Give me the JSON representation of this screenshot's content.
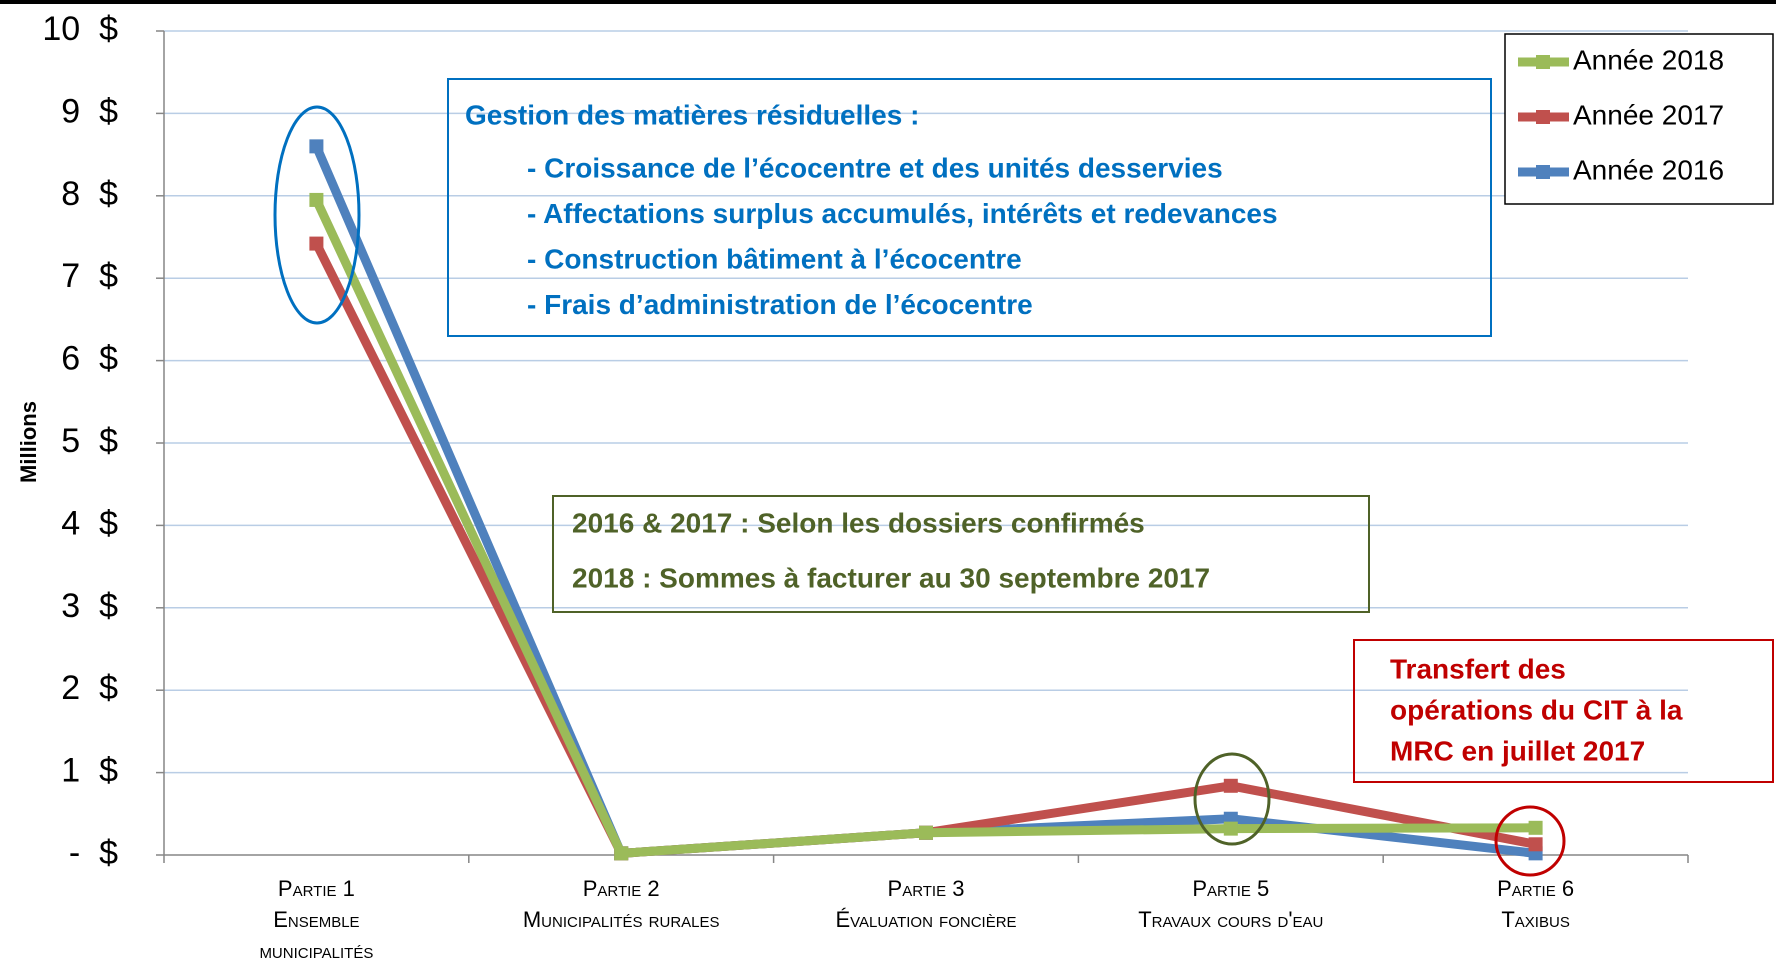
{
  "chart_data": {
    "type": "line",
    "y_label": "Millions",
    "categories": [
      [
        "Partie 1",
        "Ensemble",
        "municipalités"
      ],
      [
        "Partie 2",
        "Municipalités rurales"
      ],
      [
        "Partie 3",
        "Évaluation foncière"
      ],
      [
        "Partie 5",
        "Travaux cours d'eau"
      ],
      [
        "Partie 6",
        "Taxibus"
      ]
    ],
    "series": [
      {
        "name": "Année 2018",
        "color": "#9bbb59",
        "values": [
          7.95,
          0.02,
          0.27,
          0.32,
          0.33
        ]
      },
      {
        "name": "Année 2017",
        "color": "#c0504d",
        "values": [
          7.42,
          0.02,
          0.27,
          0.84,
          0.13
        ]
      },
      {
        "name": "Année 2016",
        "color": "#4f81bd",
        "values": [
          8.6,
          0.02,
          0.27,
          0.44,
          0.02
        ]
      }
    ],
    "ylim": [
      0,
      10
    ],
    "yticks": [
      {
        "value": 0,
        "label": "-  $"
      },
      {
        "value": 1,
        "label": "1  $"
      },
      {
        "value": 2,
        "label": "2  $"
      },
      {
        "value": 3,
        "label": "3  $"
      },
      {
        "value": 4,
        "label": "4  $"
      },
      {
        "value": 5,
        "label": "5  $"
      },
      {
        "value": 6,
        "label": "6  $"
      },
      {
        "value": 7,
        "label": "7  $"
      },
      {
        "value": 8,
        "label": "8  $"
      },
      {
        "value": 9,
        "label": "9  $"
      },
      {
        "value": 10,
        "label": "10  $"
      }
    ],
    "grid": true,
    "legend_position": "upper right",
    "annotations": [
      {
        "title": "Gestion des matières résiduelles :",
        "items": [
          "- Croissance de l’écocentre et des unités desservies",
          "- Affectations surplus accumulés, intérêts et redevances",
          "- Construction bâtiment à l’écocentre",
          "- Frais d’administration de l’écocentre"
        ]
      },
      {
        "items": [
          "2016 & 2017 : Selon les dossiers confirmés",
          "2018 : Sommes à facturer au 30 septembre 2017"
        ]
      },
      {
        "items": [
          "Transfert des",
          "opérations du CIT à la",
          "MRC en juillet 2017"
        ]
      }
    ]
  }
}
